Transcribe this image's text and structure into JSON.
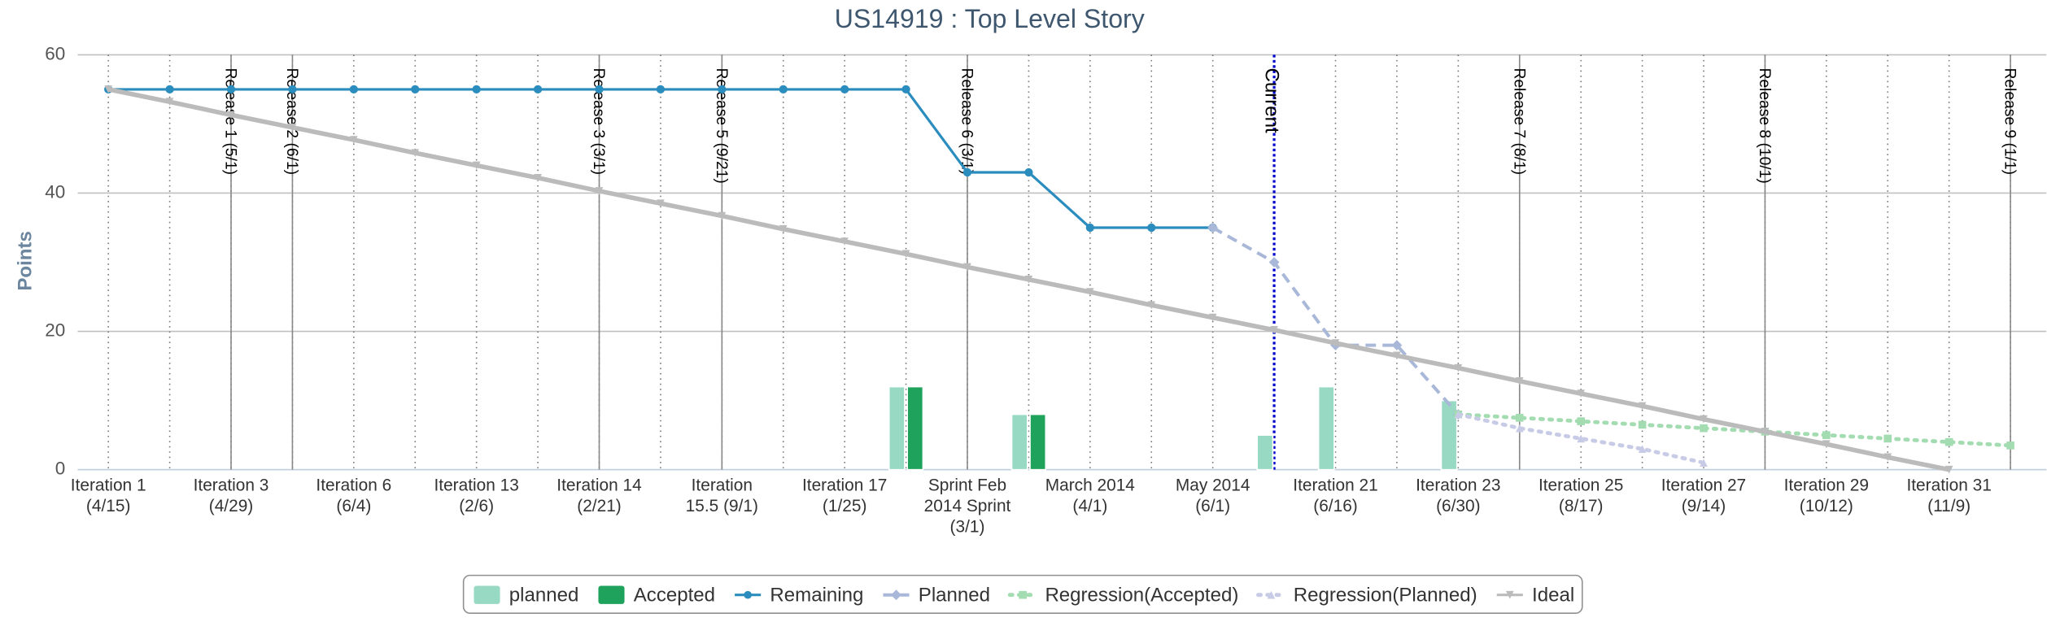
{
  "chart_data": {
    "type": "combo",
    "title": "US14919 : Top Level Story",
    "y_label": "Points",
    "categories": [
      "Iteration 1 (4/15)",
      null,
      "Iteration 3 (4/29)",
      null,
      "Iteration 6 (6/4)",
      null,
      "Iteration 13 (2/6)",
      null,
      "Iteration 14 (2/21)",
      null,
      "Iteration 15.5 (9/1)",
      null,
      "Iteration 17 (1/25)",
      null,
      "Sprint Feb 2014 Sprint (3/1)",
      null,
      "March 2014 (4/1)",
      null,
      "May 2014 (6/1)",
      null,
      "Iteration 21 (6/16)",
      null,
      "Iteration 23 (6/30)",
      null,
      "Iteration 25 (8/17)",
      null,
      "Iteration 27 (9/14)",
      null,
      "Iteration 29 (10/12)",
      null,
      "Iteration 31 (11/9)",
      null
    ],
    "ylim": [
      0,
      60
    ],
    "yticks": [
      0,
      20,
      40,
      60
    ],
    "grid": true,
    "series": [
      {
        "name": "planned",
        "type": "bar",
        "color": "#98d9c4",
        "values": [
          null,
          null,
          null,
          null,
          null,
          null,
          null,
          null,
          null,
          null,
          null,
          null,
          null,
          12,
          null,
          8,
          null,
          null,
          null,
          5,
          12,
          null,
          10,
          null,
          null,
          null,
          null,
          null,
          null,
          null,
          null,
          null
        ]
      },
      {
        "name": "Accepted",
        "type": "bar",
        "color": "#1fa35c",
        "values": [
          null,
          null,
          null,
          null,
          null,
          null,
          null,
          null,
          null,
          null,
          null,
          null,
          null,
          12,
          null,
          8,
          null,
          null,
          null,
          null,
          null,
          null,
          null,
          null,
          null,
          null,
          null,
          null,
          null,
          null,
          null,
          null
        ]
      },
      {
        "name": "Remaining",
        "type": "line",
        "color": "#2b8cbe",
        "style": "solid",
        "marker": "circle",
        "values": [
          55,
          55,
          55,
          55,
          55,
          55,
          55,
          55,
          55,
          55,
          55,
          55,
          55,
          55,
          43,
          43,
          35,
          35,
          35,
          null,
          null,
          null,
          null,
          null,
          null,
          null,
          null,
          null,
          null,
          null,
          null,
          null
        ]
      },
      {
        "name": "Planned",
        "type": "line",
        "color": "#a9b8d8",
        "style": "dashed",
        "marker": "diamond",
        "values": [
          null,
          null,
          null,
          null,
          null,
          null,
          null,
          null,
          null,
          null,
          null,
          null,
          null,
          null,
          null,
          null,
          null,
          null,
          35,
          30,
          18,
          18,
          8,
          null,
          null,
          null,
          null,
          null,
          null,
          null,
          null,
          null
        ]
      },
      {
        "name": "Regression(Accepted)",
        "type": "line",
        "color": "#a3dcb1",
        "style": "dotted",
        "marker": "square",
        "values": [
          null,
          null,
          null,
          null,
          null,
          null,
          null,
          null,
          null,
          null,
          null,
          null,
          null,
          null,
          null,
          null,
          null,
          null,
          null,
          null,
          null,
          null,
          8,
          7.5,
          7,
          6.5,
          6,
          5.5,
          5,
          4.5,
          4,
          3.5
        ]
      },
      {
        "name": "Regression(Planned)",
        "type": "line",
        "color": "#c8cbe6",
        "style": "dotted",
        "marker": "triangle",
        "values": [
          null,
          null,
          null,
          null,
          null,
          null,
          null,
          null,
          null,
          null,
          null,
          null,
          null,
          null,
          null,
          null,
          null,
          null,
          null,
          null,
          null,
          null,
          8,
          6,
          4.5,
          3,
          1,
          null,
          null,
          null,
          null,
          null
        ]
      },
      {
        "name": "Ideal",
        "type": "line",
        "color": "#bbbbbb",
        "style": "thick",
        "marker": "triangle-down",
        "values": [
          55,
          53.2,
          51.3,
          49.5,
          47.7,
          45.8,
          44,
          42.2,
          40.3,
          38.5,
          36.7,
          34.8,
          33,
          31.2,
          29.3,
          27.5,
          25.7,
          23.8,
          22,
          20.2,
          18.3,
          16.5,
          14.7,
          12.8,
          11,
          9.2,
          7.3,
          5.5,
          3.7,
          1.8,
          0,
          null
        ]
      }
    ],
    "plot_lines": [
      {
        "label": "Release 1 (5/1)",
        "index": 2,
        "color": "#888888"
      },
      {
        "label": "Release 2 (6/1)",
        "index": 3,
        "color": "#888888"
      },
      {
        "label": "Release 3 (3/1)",
        "index": 8,
        "color": "#888888"
      },
      {
        "label": "Release 5 (9/21)",
        "index": 10,
        "color": "#888888"
      },
      {
        "label": "Release 6 (3/1)",
        "index": 14,
        "color": "#888888"
      },
      {
        "label": "Current",
        "index": 19,
        "color": "#0000cc",
        "style": "dotted"
      },
      {
        "label": "Release 7 (8/1)",
        "index": 23,
        "color": "#888888"
      },
      {
        "label": "Release 8 (10/1)",
        "index": 27,
        "color": "#888888"
      },
      {
        "label": "Release 9 (1/1)",
        "index": 31,
        "color": "#888888"
      }
    ]
  }
}
